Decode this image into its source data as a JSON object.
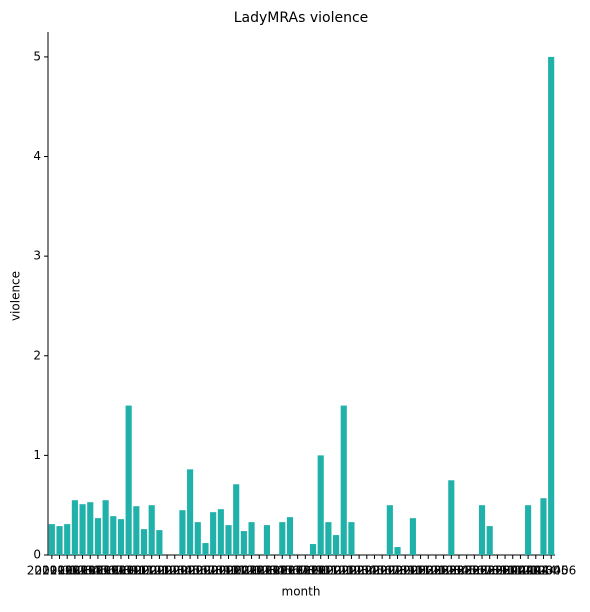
{
  "chart_data": {
    "type": "bar",
    "title": "LadyMRAs violence",
    "x_label": "month",
    "y_label": "violence",
    "categories": [
      "2019-01",
      "2019-02",
      "2019-03",
      "2019-04",
      "2019-05",
      "2019-06",
      "2019-07",
      "2019-08",
      "2019-09",
      "2019-10",
      "2019-11",
      "2019-12",
      "2020-01",
      "2020-02",
      "2020-03",
      "2020-04",
      "2020-05",
      "2020-06",
      "2020-07",
      "2020-08",
      "2020-09",
      "2020-10",
      "2020-11",
      "2020-12",
      "2021-01",
      "2021-02",
      "2021-03",
      "2021-04",
      "2021-05",
      "2021-06",
      "2021-07",
      "2021-08",
      "2021-09",
      "2021-10",
      "2021-11",
      "2021-12",
      "2022-01",
      "2022-02",
      "2022-03",
      "2022-04",
      "2022-05",
      "2022-06",
      "2022-07",
      "2022-08",
      "2022-09",
      "2022-10",
      "2022-11",
      "2022-12",
      "2023-01",
      "2023-02",
      "2023-03",
      "2023-04",
      "2023-05",
      "2023-06",
      "2023-07",
      "2023-08",
      "2023-09",
      "2023-10",
      "2023-11",
      "2023-12",
      "2024-01",
      "2024-02",
      "2024-03",
      "2024-04",
      "2024-05",
      "2024-06"
    ],
    "values": [
      0.31,
      0.29,
      0.31,
      0.55,
      0.51,
      0.53,
      0.37,
      0.55,
      0.39,
      0.36,
      1.5,
      0.49,
      0.26,
      0.5,
      0.25,
      0,
      0,
      0.45,
      0.86,
      0.33,
      0.12,
      0.43,
      0.46,
      0.3,
      0.71,
      0.24,
      0.33,
      0,
      0.3,
      0,
      0.33,
      0.38,
      0,
      0,
      0.11,
      1.0,
      0.33,
      0.2,
      1.5,
      0.33,
      0,
      0,
      0,
      0,
      0.5,
      0.08,
      0,
      0.37,
      0,
      0,
      0,
      0,
      0.75,
      0,
      0,
      0,
      0.5,
      0.29,
      0,
      0,
      0,
      0,
      0.5,
      0,
      0.57,
      5.0
    ],
    "color": "#20b2aa",
    "ylim": [
      0,
      5.25
    ],
    "yticks": [
      0,
      1,
      2,
      3,
      4,
      5
    ],
    "grid": false
  }
}
